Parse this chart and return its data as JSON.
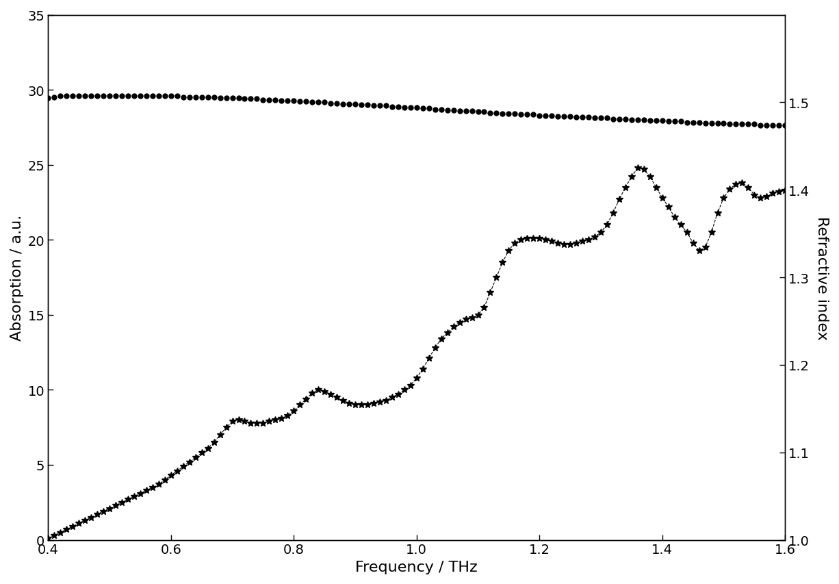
{
  "xlabel": "Frequency / THz",
  "ylabel_left": "Absorption / a.u.",
  "ylabel_right": "Refractive index",
  "xlim": [
    0.4,
    1.6
  ],
  "ylim_left": [
    0,
    35
  ],
  "ylim_right": [
    1.0,
    1.6
  ],
  "xticks": [
    0.4,
    0.6,
    0.8,
    1.0,
    1.2,
    1.4,
    1.6
  ],
  "yticks_left": [
    0,
    5,
    10,
    15,
    20,
    25,
    30,
    35
  ],
  "yticks_right": [
    1.0,
    1.1,
    1.2,
    1.3,
    1.4,
    1.5
  ],
  "background_color": "#ffffff",
  "absorption_x": [
    0.4,
    0.41,
    0.42,
    0.43,
    0.44,
    0.45,
    0.46,
    0.47,
    0.48,
    0.49,
    0.5,
    0.51,
    0.52,
    0.53,
    0.54,
    0.55,
    0.56,
    0.57,
    0.58,
    0.59,
    0.6,
    0.61,
    0.62,
    0.63,
    0.64,
    0.65,
    0.66,
    0.67,
    0.68,
    0.69,
    0.7,
    0.71,
    0.72,
    0.73,
    0.74,
    0.75,
    0.76,
    0.77,
    0.78,
    0.79,
    0.8,
    0.81,
    0.82,
    0.83,
    0.84,
    0.85,
    0.86,
    0.87,
    0.88,
    0.89,
    0.9,
    0.91,
    0.92,
    0.93,
    0.94,
    0.95,
    0.96,
    0.97,
    0.98,
    0.99,
    1.0,
    1.01,
    1.02,
    1.03,
    1.04,
    1.05,
    1.06,
    1.07,
    1.08,
    1.09,
    1.1,
    1.11,
    1.12,
    1.13,
    1.14,
    1.15,
    1.16,
    1.17,
    1.18,
    1.19,
    1.2,
    1.21,
    1.22,
    1.23,
    1.24,
    1.25,
    1.26,
    1.27,
    1.28,
    1.29,
    1.3,
    1.31,
    1.32,
    1.33,
    1.34,
    1.35,
    1.36,
    1.37,
    1.38,
    1.39,
    1.4,
    1.41,
    1.42,
    1.43,
    1.44,
    1.45,
    1.46,
    1.47,
    1.48,
    1.49,
    1.5,
    1.51,
    1.52,
    1.53,
    1.54,
    1.55,
    1.56,
    1.57,
    1.58,
    1.59,
    1.6
  ],
  "absorption_y": [
    0.1,
    0.3,
    0.5,
    0.7,
    0.9,
    1.1,
    1.3,
    1.5,
    1.7,
    1.9,
    2.1,
    2.3,
    2.5,
    2.7,
    2.9,
    3.1,
    3.3,
    3.5,
    3.7,
    4.0,
    4.3,
    4.6,
    4.9,
    5.2,
    5.5,
    5.8,
    6.1,
    6.5,
    7.0,
    7.5,
    7.9,
    8.0,
    7.9,
    7.8,
    7.8,
    7.8,
    7.9,
    8.0,
    8.1,
    8.3,
    8.6,
    9.0,
    9.4,
    9.8,
    10.0,
    9.9,
    9.7,
    9.5,
    9.3,
    9.1,
    9.0,
    9.0,
    9.0,
    9.1,
    9.2,
    9.3,
    9.5,
    9.7,
    10.0,
    10.3,
    10.8,
    11.4,
    12.1,
    12.8,
    13.4,
    13.8,
    14.2,
    14.5,
    14.7,
    14.8,
    15.0,
    15.5,
    16.5,
    17.5,
    18.5,
    19.3,
    19.8,
    20.0,
    20.1,
    20.1,
    20.1,
    20.0,
    19.9,
    19.8,
    19.7,
    19.7,
    19.8,
    19.9,
    20.0,
    20.2,
    20.5,
    21.0,
    21.8,
    22.7,
    23.5,
    24.2,
    24.8,
    24.7,
    24.2,
    23.5,
    22.8,
    22.2,
    21.5,
    21.0,
    20.5,
    19.8,
    19.3,
    19.5,
    20.5,
    21.8,
    22.8,
    23.4,
    23.7,
    23.8,
    23.5,
    23.0,
    22.8,
    22.9,
    23.1,
    23.2,
    23.3
  ],
  "refindex_x": [
    0.4,
    0.41,
    0.42,
    0.43,
    0.44,
    0.45,
    0.46,
    0.47,
    0.48,
    0.49,
    0.5,
    0.51,
    0.52,
    0.53,
    0.54,
    0.55,
    0.56,
    0.57,
    0.58,
    0.59,
    0.6,
    0.61,
    0.62,
    0.63,
    0.64,
    0.65,
    0.66,
    0.67,
    0.68,
    0.69,
    0.7,
    0.71,
    0.72,
    0.73,
    0.74,
    0.75,
    0.76,
    0.77,
    0.78,
    0.79,
    0.8,
    0.81,
    0.82,
    0.83,
    0.84,
    0.85,
    0.86,
    0.87,
    0.88,
    0.89,
    0.9,
    0.91,
    0.92,
    0.93,
    0.94,
    0.95,
    0.96,
    0.97,
    0.98,
    0.99,
    1.0,
    1.01,
    1.02,
    1.03,
    1.04,
    1.05,
    1.06,
    1.07,
    1.08,
    1.09,
    1.1,
    1.11,
    1.12,
    1.13,
    1.14,
    1.15,
    1.16,
    1.17,
    1.18,
    1.19,
    1.2,
    1.21,
    1.22,
    1.23,
    1.24,
    1.25,
    1.26,
    1.27,
    1.28,
    1.29,
    1.3,
    1.31,
    1.32,
    1.33,
    1.34,
    1.35,
    1.36,
    1.37,
    1.38,
    1.39,
    1.4,
    1.41,
    1.42,
    1.43,
    1.44,
    1.45,
    1.46,
    1.47,
    1.48,
    1.49,
    1.5,
    1.51,
    1.52,
    1.53,
    1.54,
    1.55,
    1.56,
    1.57,
    1.58,
    1.59,
    1.6
  ],
  "refindex_y": [
    1.505,
    1.506,
    1.507,
    1.507,
    1.507,
    1.507,
    1.507,
    1.507,
    1.507,
    1.507,
    1.507,
    1.507,
    1.507,
    1.507,
    1.507,
    1.507,
    1.507,
    1.507,
    1.507,
    1.507,
    1.507,
    1.507,
    1.506,
    1.506,
    1.506,
    1.506,
    1.506,
    1.506,
    1.505,
    1.505,
    1.505,
    1.505,
    1.504,
    1.504,
    1.504,
    1.503,
    1.503,
    1.503,
    1.502,
    1.502,
    1.502,
    1.501,
    1.501,
    1.5,
    1.5,
    1.5,
    1.499,
    1.499,
    1.498,
    1.498,
    1.498,
    1.497,
    1.497,
    1.496,
    1.496,
    1.496,
    1.495,
    1.495,
    1.494,
    1.494,
    1.494,
    1.493,
    1.493,
    1.492,
    1.492,
    1.491,
    1.491,
    1.49,
    1.49,
    1.49,
    1.489,
    1.489,
    1.488,
    1.488,
    1.487,
    1.487,
    1.487,
    1.486,
    1.486,
    1.486,
    1.485,
    1.485,
    1.485,
    1.484,
    1.484,
    1.484,
    1.483,
    1.483,
    1.483,
    1.482,
    1.482,
    1.482,
    1.481,
    1.481,
    1.481,
    1.48,
    1.48,
    1.48,
    1.479,
    1.479,
    1.479,
    1.478,
    1.478,
    1.478,
    1.477,
    1.477,
    1.477,
    1.476,
    1.476,
    1.476,
    1.476,
    1.475,
    1.475,
    1.475,
    1.475,
    1.475,
    1.474,
    1.474,
    1.474,
    1.474,
    1.474
  ],
  "marker_absorption": "*",
  "marker_refindex": "o",
  "color": "#000000",
  "linestyle": "--",
  "fontsize_label": 16,
  "fontsize_tick": 14
}
